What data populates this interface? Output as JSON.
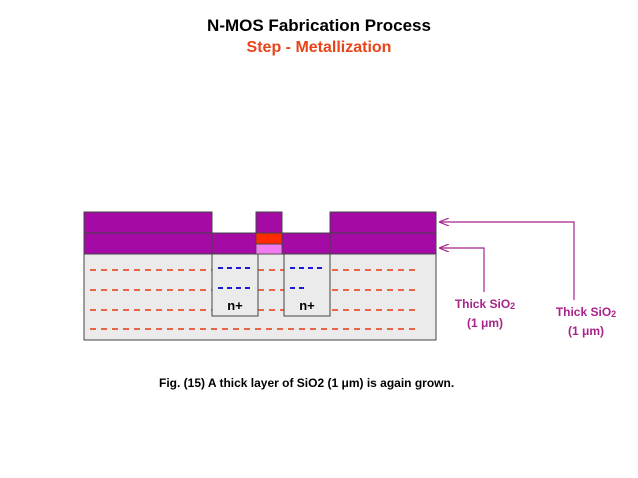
{
  "header": {
    "title": "N-MOS Fabrication Process",
    "subtitle": "Step - Metallization"
  },
  "diagram": {
    "regions": {
      "left": "n+",
      "right": "n+"
    },
    "callout_top": {
      "main": "Thick SiO",
      "sub": "2",
      "thickness": "(1 μm)"
    },
    "callout_bottom": {
      "main": "Thick SiO",
      "sub": "2",
      "thickness": "(1 μm)"
    }
  },
  "caption": "Fig. (15) A  thick layer of SiO2 (1 μm) is again grown.",
  "colors": {
    "oxide": "#a40aa4",
    "substrate": "#ebebeb",
    "dash_red": "#e83a10",
    "dash_blue": "#1a1ad6",
    "gate_red": "#ff2a00",
    "gate_pink": "#f07cf0",
    "arrow": "#a8238a",
    "subtitle": "#e8441a"
  }
}
